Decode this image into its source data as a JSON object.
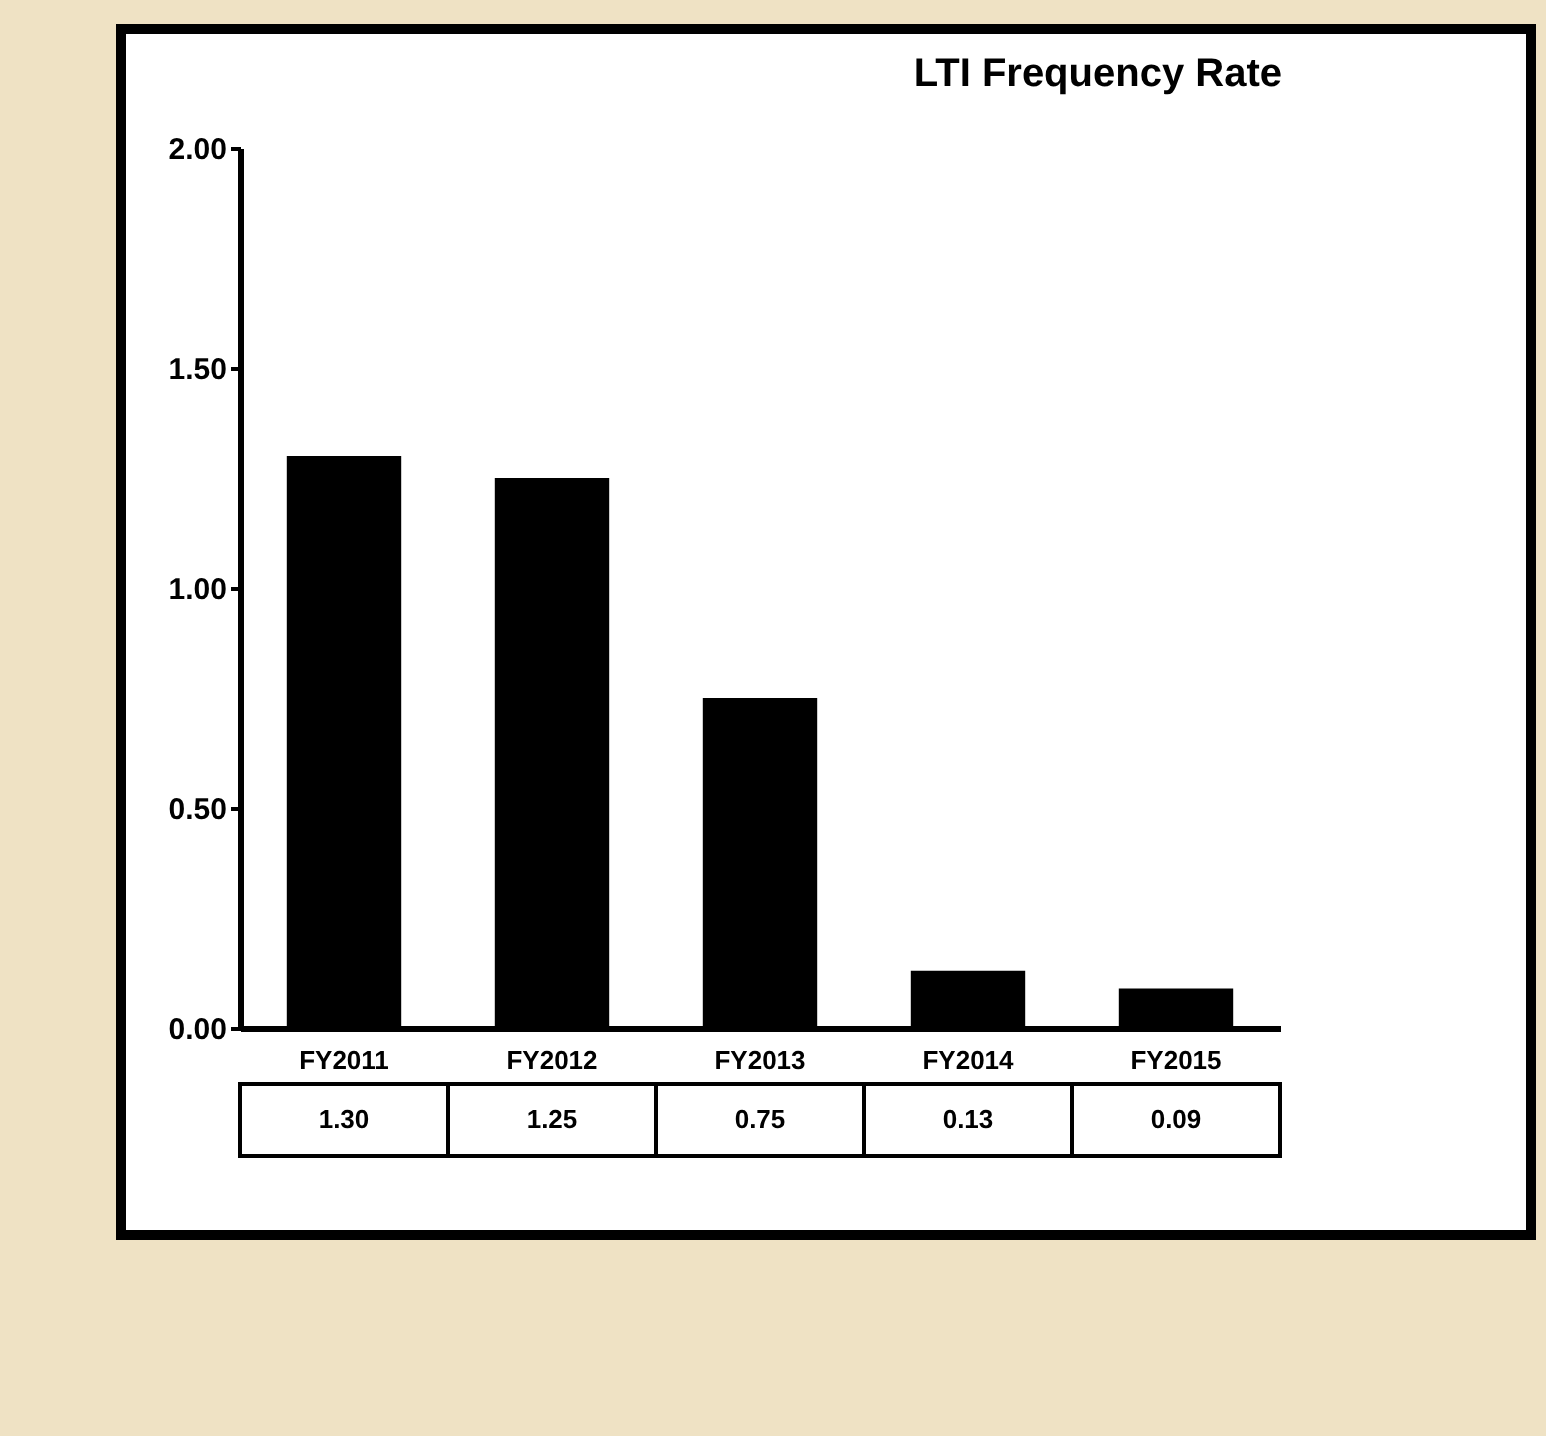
{
  "chart_data": {
    "type": "bar",
    "title": "LTI Frequency Rate",
    "categories": [
      "FY2011",
      "FY2012",
      "FY2013",
      "FY2014",
      "FY2015"
    ],
    "series": [
      {
        "color": "#000000",
        "values": [
          1.3,
          1.25,
          0.75,
          0.13,
          0.09
        ],
        "value_labels": [
          "1.30",
          "1.25",
          "0.75",
          "0.13",
          "0.09"
        ]
      }
    ],
    "ylim": [
      0,
      2
    ],
    "yticks": [
      {
        "value": 0,
        "label": "0.00"
      },
      {
        "value": 0.5,
        "label": "0.50"
      },
      {
        "value": 1,
        "label": "1.00"
      },
      {
        "value": 1.5,
        "label": "1.50"
      },
      {
        "value": 2,
        "label": "2.00"
      }
    ],
    "grid": false
  }
}
